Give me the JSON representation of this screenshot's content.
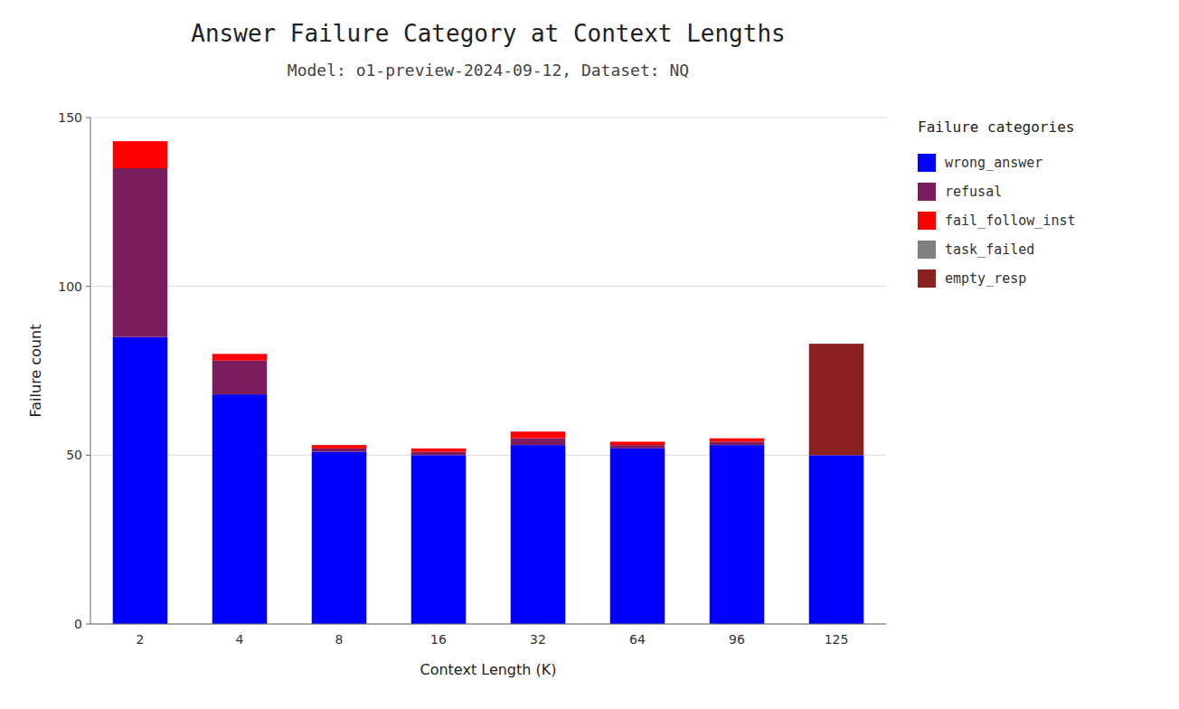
{
  "chart_data": {
    "type": "bar",
    "stacked": true,
    "title": "Answer Failure Category at Context Lengths",
    "subtitle": "Model: o1-preview-2024-09-12, Dataset: NQ",
    "x_label": "Context Length (K)",
    "y_label": "Failure count",
    "legend_title": "Failure categories",
    "categories": [
      2,
      4,
      8,
      16,
      32,
      64,
      96,
      125
    ],
    "series": [
      {
        "name": "wrong_answer",
        "color": "#0000FF",
        "values": [
          85,
          68,
          51,
          50,
          53,
          52,
          53,
          50
        ]
      },
      {
        "name": "refusal",
        "color": "#7B1C5E",
        "values": [
          50,
          10,
          1,
          1,
          2,
          1,
          1,
          0
        ]
      },
      {
        "name": "fail_follow_inst",
        "color": "#FF0000",
        "values": [
          8,
          2,
          1,
          1,
          2,
          1,
          1,
          0
        ]
      },
      {
        "name": "task_failed",
        "color": "#808080",
        "values": [
          0,
          0,
          0,
          0,
          0,
          0,
          0,
          0
        ]
      },
      {
        "name": "empty_resp",
        "color": "#8B2020",
        "values": [
          0,
          0,
          0,
          0,
          0,
          0,
          0,
          33
        ]
      }
    ],
    "ylim": [
      0,
      150
    ],
    "yticks": [
      0,
      50,
      100,
      150
    ],
    "grid": true,
    "legend": "right"
  }
}
